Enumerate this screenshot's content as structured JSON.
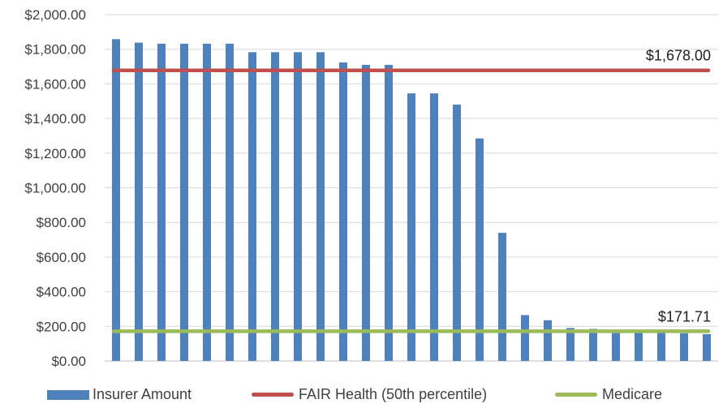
{
  "chart_data": {
    "type": "bar",
    "title": "",
    "xlabel": "",
    "ylabel": "",
    "ylim": [
      0,
      2000
    ],
    "yticks": [
      "$0.00",
      "$200.00",
      "$400.00",
      "$600.00",
      "$800.00",
      "$1,000.00",
      "$1,200.00",
      "$1,400.00",
      "$1,600.00",
      "$1,800.00",
      "$2,000.00"
    ],
    "grid": true,
    "legend_position": "bottom",
    "series": [
      {
        "name": "Insurer Amount",
        "kind": "bar",
        "color": "#4f81bd",
        "values": [
          1858,
          1838,
          1832,
          1832,
          1832,
          1832,
          1783,
          1783,
          1783,
          1783,
          1724,
          1710,
          1710,
          1545,
          1545,
          1480,
          1285,
          740,
          265,
          235,
          190,
          185,
          180,
          175,
          168,
          160,
          155
        ]
      },
      {
        "name": "FAIR Health (50th percentile)",
        "kind": "line",
        "color": "#c0504d",
        "value": 1678.0,
        "label": "$1,678.00"
      },
      {
        "name": "Medicare",
        "kind": "line",
        "color": "#9bbb59",
        "value": 171.71,
        "label": "$171.71"
      }
    ]
  }
}
